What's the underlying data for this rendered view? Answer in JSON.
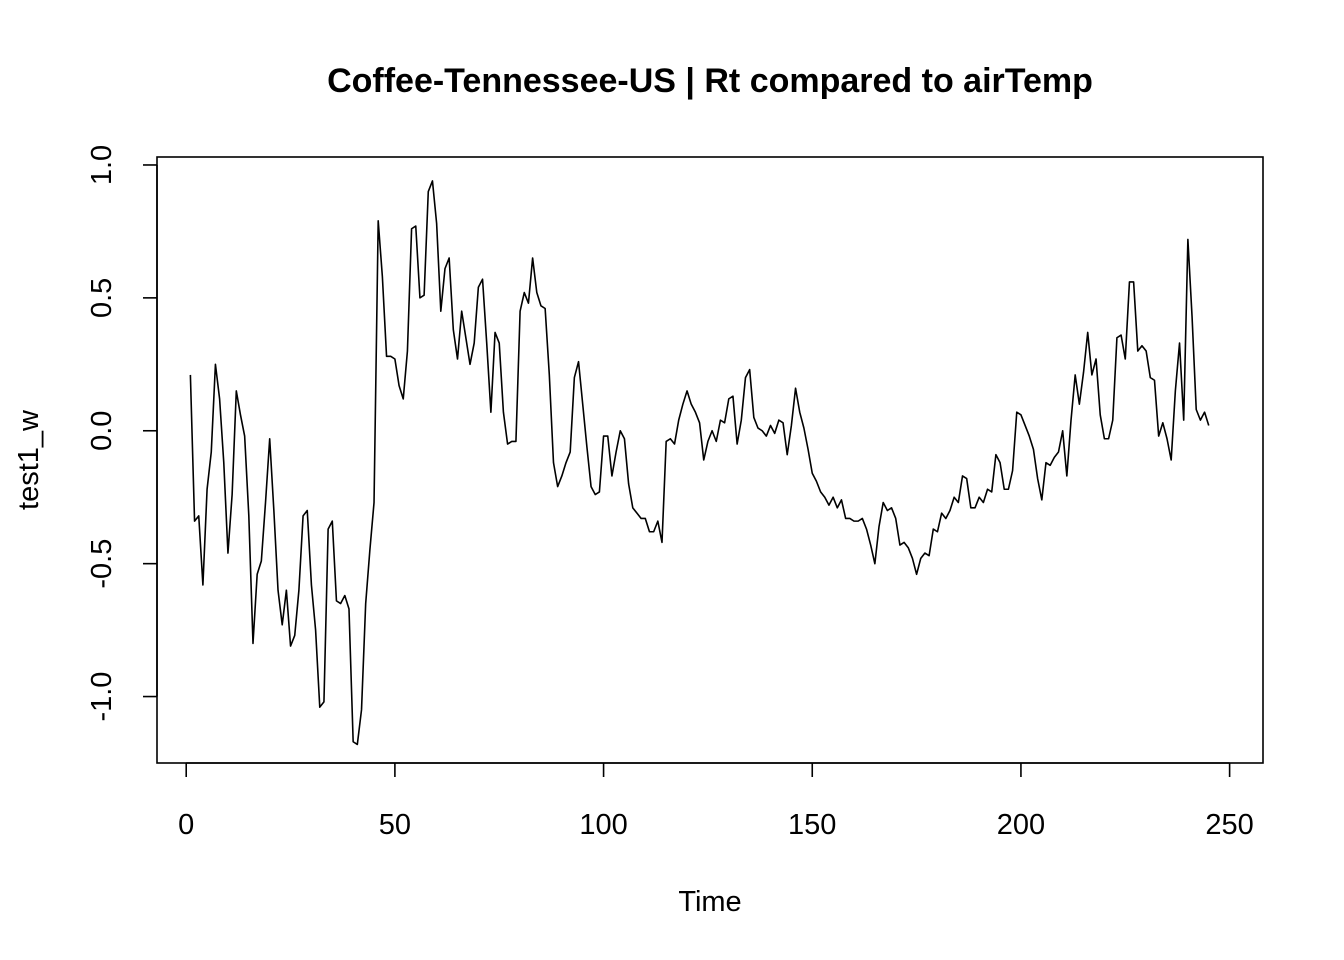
{
  "chart_data": {
    "type": "line",
    "title": "Coffee-Tennessee-US | Rt compared to airTemp",
    "xlabel": "Time",
    "ylabel": "test1_w",
    "xlim": [
      -7,
      258
    ],
    "ylim": [
      -1.25,
      1.03
    ],
    "x_ticks": [
      0,
      50,
      100,
      150,
      200,
      250
    ],
    "x_tick_labels": [
      "0",
      "50",
      "100",
      "150",
      "200",
      "250"
    ],
    "y_ticks": [
      -1.0,
      -0.5,
      0.0,
      0.5,
      1.0
    ],
    "y_tick_labels": [
      "-1.0",
      "-0.5",
      "0.0",
      "0.5",
      "1.0"
    ],
    "grid": false,
    "series": [
      {
        "x_start": 1,
        "values": [
          0.21,
          -0.34,
          -0.32,
          -0.58,
          -0.22,
          -0.08,
          0.25,
          0.12,
          -0.12,
          -0.46,
          -0.24,
          0.15,
          0.06,
          -0.02,
          -0.32,
          -0.8,
          -0.54,
          -0.49,
          -0.27,
          -0.03,
          -0.3,
          -0.6,
          -0.73,
          -0.6,
          -0.81,
          -0.77,
          -0.6,
          -0.32,
          -0.3,
          -0.58,
          -0.75,
          -1.04,
          -1.02,
          -0.37,
          -0.34,
          -0.64,
          -0.65,
          -0.62,
          -0.67,
          -1.17,
          -1.18,
          -1.05,
          -0.65,
          -0.45,
          -0.27,
          0.79,
          0.58,
          0.28,
          0.28,
          0.27,
          0.17,
          0.12,
          0.3,
          0.76,
          0.77,
          0.5,
          0.51,
          0.9,
          0.94,
          0.78,
          0.45,
          0.61,
          0.65,
          0.38,
          0.27,
          0.45,
          0.35,
          0.25,
          0.33,
          0.54,
          0.57,
          0.33,
          0.07,
          0.37,
          0.33,
          0.07,
          -0.05,
          -0.04,
          -0.04,
          0.45,
          0.52,
          0.48,
          0.65,
          0.52,
          0.47,
          0.46,
          0.21,
          -0.12,
          -0.21,
          -0.17,
          -0.12,
          -0.08,
          0.2,
          0.26,
          0.1,
          -0.06,
          -0.21,
          -0.24,
          -0.23,
          -0.02,
          -0.02,
          -0.17,
          -0.08,
          0.0,
          -0.03,
          -0.2,
          -0.29,
          -0.31,
          -0.33,
          -0.33,
          -0.38,
          -0.38,
          -0.34,
          -0.42,
          -0.04,
          -0.03,
          -0.05,
          0.04,
          0.1,
          0.15,
          0.1,
          0.07,
          0.03,
          -0.11,
          -0.04,
          0.0,
          -0.04,
          0.04,
          0.03,
          0.12,
          0.13,
          -0.05,
          0.04,
          0.2,
          0.23,
          0.05,
          0.01,
          0.0,
          -0.02,
          0.02,
          -0.01,
          0.04,
          0.03,
          -0.09,
          0.02,
          0.16,
          0.07,
          0.01,
          -0.07,
          -0.16,
          -0.19,
          -0.23,
          -0.25,
          -0.28,
          -0.25,
          -0.29,
          -0.26,
          -0.33,
          -0.33,
          -0.34,
          -0.34,
          -0.33,
          -0.37,
          -0.43,
          -0.5,
          -0.36,
          -0.27,
          -0.3,
          -0.29,
          -0.33,
          -0.43,
          -0.42,
          -0.44,
          -0.48,
          -0.54,
          -0.48,
          -0.46,
          -0.47,
          -0.37,
          -0.38,
          -0.31,
          -0.33,
          -0.3,
          -0.25,
          -0.27,
          -0.17,
          -0.18,
          -0.29,
          -0.29,
          -0.25,
          -0.27,
          -0.22,
          -0.23,
          -0.09,
          -0.12,
          -0.22,
          -0.22,
          -0.15,
          0.07,
          0.06,
          0.02,
          -0.02,
          -0.07,
          -0.18,
          -0.26,
          -0.12,
          -0.13,
          -0.1,
          -0.08,
          0.0,
          -0.17,
          0.04,
          0.21,
          0.1,
          0.22,
          0.37,
          0.21,
          0.27,
          0.06,
          -0.03,
          -0.03,
          0.04,
          0.35,
          0.36,
          0.27,
          0.56,
          0.56,
          0.3,
          0.32,
          0.3,
          0.2,
          0.19,
          -0.02,
          0.03,
          -0.03,
          -0.11,
          0.15,
          0.33,
          0.04,
          0.72,
          0.43,
          0.08,
          0.04,
          0.07,
          0.02
        ]
      }
    ]
  }
}
